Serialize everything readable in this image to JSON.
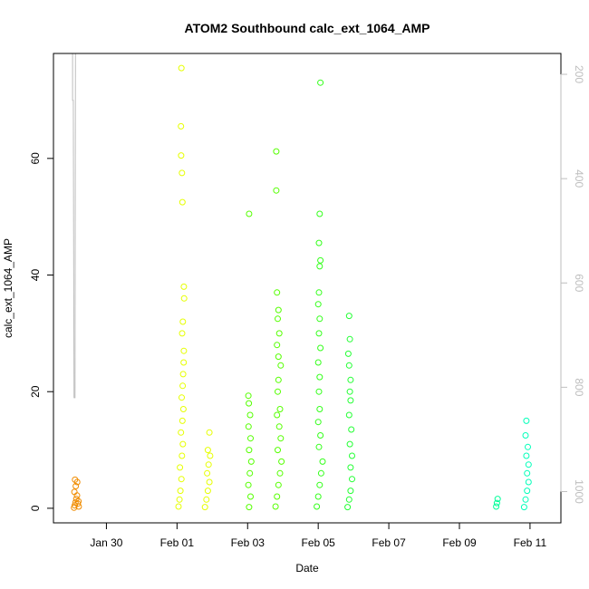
{
  "chart_data": {
    "type": "scatter",
    "title": "ATOM2 Southbound calc_ext_1064_AMP",
    "xlabel": "Date",
    "ylabel": "calc_ext_1064_AMP",
    "xlim": [
      "2024-01-28T12:00",
      "2024-02-11T21:00"
    ],
    "ylim": [
      -2.5,
      78
    ],
    "x_ticks": [
      {
        "date": "2024-01-30T00:00",
        "label": "Jan 30"
      },
      {
        "date": "2024-02-01T00:00",
        "label": "Feb 01"
      },
      {
        "date": "2024-02-03T00:00",
        "label": "Feb 03"
      },
      {
        "date": "2024-02-05T00:00",
        "label": "Feb 05"
      },
      {
        "date": "2024-02-07T00:00",
        "label": "Feb 07"
      },
      {
        "date": "2024-02-09T00:00",
        "label": "Feb 09"
      },
      {
        "date": "2024-02-11T00:00",
        "label": "Feb 11"
      }
    ],
    "y_ticks": [
      0,
      20,
      40,
      60
    ],
    "y2_ticks": [
      200,
      400,
      600,
      800,
      1000
    ],
    "y2_lim": [
      1060,
      160
    ],
    "y2_axis_color": "#bebebe",
    "grid": false,
    "legend": "none",
    "series": [
      {
        "color": "#f08c00",
        "points": [
          [
            "2024-01-29T02:00",
            0.1
          ],
          [
            "2024-01-29T02:30",
            0.5
          ],
          [
            "2024-01-29T03:00",
            1.0
          ],
          [
            "2024-01-29T03:30",
            1.6
          ],
          [
            "2024-01-29T04:00",
            2.2
          ],
          [
            "2024-01-29T04:30",
            0.8
          ],
          [
            "2024-01-29T05:00",
            1.2
          ],
          [
            "2024-01-29T02:15",
            2.8
          ],
          [
            "2024-01-29T03:10",
            3.8
          ],
          [
            "2024-01-29T02:40",
            4.9
          ],
          [
            "2024-01-29T04:10",
            4.5
          ],
          [
            "2024-01-29T05:10",
            0.3
          ]
        ]
      },
      {
        "color": "#e6ff00",
        "points": [
          [
            "2024-02-01T01:00",
            0.3
          ],
          [
            "2024-02-01T01:40",
            1.5
          ],
          [
            "2024-02-01T02:20",
            3.0
          ],
          [
            "2024-02-01T03:00",
            5.0
          ],
          [
            "2024-02-01T02:00",
            7.0
          ],
          [
            "2024-02-01T03:20",
            9.0
          ],
          [
            "2024-02-01T04:00",
            11.0
          ],
          [
            "2024-02-01T02:40",
            13.0
          ],
          [
            "2024-02-01T03:40",
            15.0
          ],
          [
            "2024-02-01T04:20",
            17.0
          ],
          [
            "2024-02-01T03:10",
            19.0
          ],
          [
            "2024-02-01T03:50",
            21.0
          ],
          [
            "2024-02-01T04:10",
            23.0
          ],
          [
            "2024-02-01T04:30",
            25.0
          ],
          [
            "2024-02-01T04:40",
            27.0
          ],
          [
            "2024-02-01T03:30",
            30.0
          ],
          [
            "2024-02-01T04:00",
            32.0
          ],
          [
            "2024-02-01T04:50",
            36.0
          ],
          [
            "2024-02-01T04:40",
            38.0
          ],
          [
            "2024-02-01T03:40",
            52.5
          ],
          [
            "2024-02-01T03:20",
            57.5
          ],
          [
            "2024-02-01T02:50",
            60.5
          ],
          [
            "2024-02-01T02:40",
            65.5
          ],
          [
            "2024-02-01T03:00",
            75.5
          ],
          [
            "2024-02-01T19:00",
            0.2
          ],
          [
            "2024-02-01T20:00",
            1.5
          ],
          [
            "2024-02-01T21:00",
            3.0
          ],
          [
            "2024-02-01T22:00",
            4.5
          ],
          [
            "2024-02-01T20:30",
            6.0
          ],
          [
            "2024-02-01T21:30",
            7.5
          ],
          [
            "2024-02-01T22:30",
            9.0
          ],
          [
            "2024-02-01T21:00",
            10.0
          ],
          [
            "2024-02-01T22:00",
            13.0
          ]
        ]
      },
      {
        "color": "#55ff00",
        "points": [
          [
            "2024-02-03T01:00",
            0.2
          ],
          [
            "2024-02-03T02:00",
            2.0
          ],
          [
            "2024-02-03T00:30",
            4.0
          ],
          [
            "2024-02-03T01:30",
            6.0
          ],
          [
            "2024-02-03T02:30",
            8.0
          ],
          [
            "2024-02-03T01:00",
            10.0
          ],
          [
            "2024-02-03T02:00",
            12.0
          ],
          [
            "2024-02-03T00:40",
            14.0
          ],
          [
            "2024-02-03T01:40",
            16.0
          ],
          [
            "2024-02-03T00:50",
            18.0
          ],
          [
            "2024-02-03T00:30",
            19.3
          ],
          [
            "2024-02-03T01:00",
            50.5
          ],
          [
            "2024-02-03T19:00",
            0.3
          ],
          [
            "2024-02-03T20:00",
            2.0
          ],
          [
            "2024-02-03T21:00",
            4.0
          ],
          [
            "2024-02-03T22:00",
            6.0
          ],
          [
            "2024-02-03T23:00",
            8.0
          ],
          [
            "2024-02-03T20:30",
            10.0
          ],
          [
            "2024-02-03T22:30",
            12.0
          ],
          [
            "2024-02-03T21:30",
            14.0
          ],
          [
            "2024-02-03T20:00",
            16.0
          ],
          [
            "2024-02-03T22:00",
            17.0
          ],
          [
            "2024-02-03T20:30",
            20.0
          ],
          [
            "2024-02-03T21:00",
            22.0
          ],
          [
            "2024-02-03T22:30",
            24.5
          ],
          [
            "2024-02-03T21:00",
            26.0
          ],
          [
            "2024-02-03T20:00",
            28.0
          ],
          [
            "2024-02-03T21:30",
            30.0
          ],
          [
            "2024-02-03T20:30",
            32.5
          ],
          [
            "2024-02-03T21:00",
            34.0
          ],
          [
            "2024-02-03T20:00",
            37.0
          ],
          [
            "2024-02-03T19:30",
            54.5
          ],
          [
            "2024-02-03T19:30",
            61.2
          ]
        ]
      },
      {
        "color": "#33ff1a",
        "points": [
          [
            "2024-02-04T23:00",
            0.3
          ],
          [
            "2024-02-05T00:00",
            2.0
          ],
          [
            "2024-02-05T01:00",
            4.0
          ],
          [
            "2024-02-05T02:00",
            6.0
          ],
          [
            "2024-02-05T03:00",
            8.0
          ],
          [
            "2024-02-05T00:30",
            10.5
          ],
          [
            "2024-02-05T01:30",
            12.5
          ],
          [
            "2024-02-05T00:00",
            14.8
          ],
          [
            "2024-02-05T01:00",
            17.0
          ],
          [
            "2024-02-05T00:30",
            20.0
          ],
          [
            "2024-02-05T01:00",
            22.5
          ],
          [
            "2024-02-05T00:00",
            25.0
          ],
          [
            "2024-02-05T01:30",
            27.5
          ],
          [
            "2024-02-05T00:30",
            30.0
          ],
          [
            "2024-02-05T01:00",
            32.5
          ],
          [
            "2024-02-05T00:00",
            35.0
          ],
          [
            "2024-02-05T00:30",
            37.0
          ],
          [
            "2024-02-05T01:00",
            41.5
          ],
          [
            "2024-02-05T01:30",
            42.5
          ],
          [
            "2024-02-05T00:30",
            45.5
          ],
          [
            "2024-02-05T01:00",
            50.5
          ],
          [
            "2024-02-05T01:30",
            73.0
          ]
        ]
      },
      {
        "color": "#22ff33",
        "points": [
          [
            "2024-02-05T20:00",
            0.2
          ],
          [
            "2024-02-05T21:00",
            1.5
          ],
          [
            "2024-02-05T22:00",
            3.0
          ],
          [
            "2024-02-05T23:00",
            5.0
          ],
          [
            "2024-02-05T22:00",
            7.0
          ],
          [
            "2024-02-05T23:00",
            9.0
          ],
          [
            "2024-02-05T21:30",
            11.0
          ],
          [
            "2024-02-05T22:30",
            13.5
          ],
          [
            "2024-02-05T21:00",
            16.0
          ],
          [
            "2024-02-05T22:00",
            18.5
          ],
          [
            "2024-02-05T21:30",
            20.0
          ],
          [
            "2024-02-05T22:00",
            22.0
          ],
          [
            "2024-02-05T21:00",
            24.5
          ],
          [
            "2024-02-05T20:30",
            26.5
          ],
          [
            "2024-02-05T21:30",
            29.0
          ],
          [
            "2024-02-05T21:00",
            33.0
          ]
        ]
      },
      {
        "color": "#00ff99",
        "points": [
          [
            "2024-02-10T01:00",
            0.3
          ],
          [
            "2024-02-10T01:30",
            0.9
          ],
          [
            "2024-02-10T02:00",
            1.6
          ]
        ]
      },
      {
        "color": "#00ffb9",
        "points": [
          [
            "2024-02-10T20:00",
            0.2
          ],
          [
            "2024-02-10T21:00",
            1.5
          ],
          [
            "2024-02-10T22:00",
            3.0
          ],
          [
            "2024-02-10T23:00",
            4.5
          ],
          [
            "2024-02-10T22:00",
            6.0
          ],
          [
            "2024-02-10T23:00",
            7.5
          ],
          [
            "2024-02-10T21:30",
            9.0
          ],
          [
            "2024-02-10T22:30",
            10.5
          ],
          [
            "2024-02-10T21:00",
            12.5
          ],
          [
            "2024-02-10T21:30",
            15.0
          ]
        ]
      }
    ],
    "secondary_line": {
      "color": "#bebebe",
      "note_axis": "right",
      "points": [
        [
          "2024-01-29T01:00",
          160
        ],
        [
          "2024-01-29T01:00",
          250
        ],
        [
          "2024-01-29T01:30",
          250
        ],
        [
          "2024-01-29T02:00",
          820
        ],
        [
          "2024-01-29T02:40",
          820
        ],
        [
          "2024-01-29T03:00",
          160
        ]
      ]
    }
  }
}
